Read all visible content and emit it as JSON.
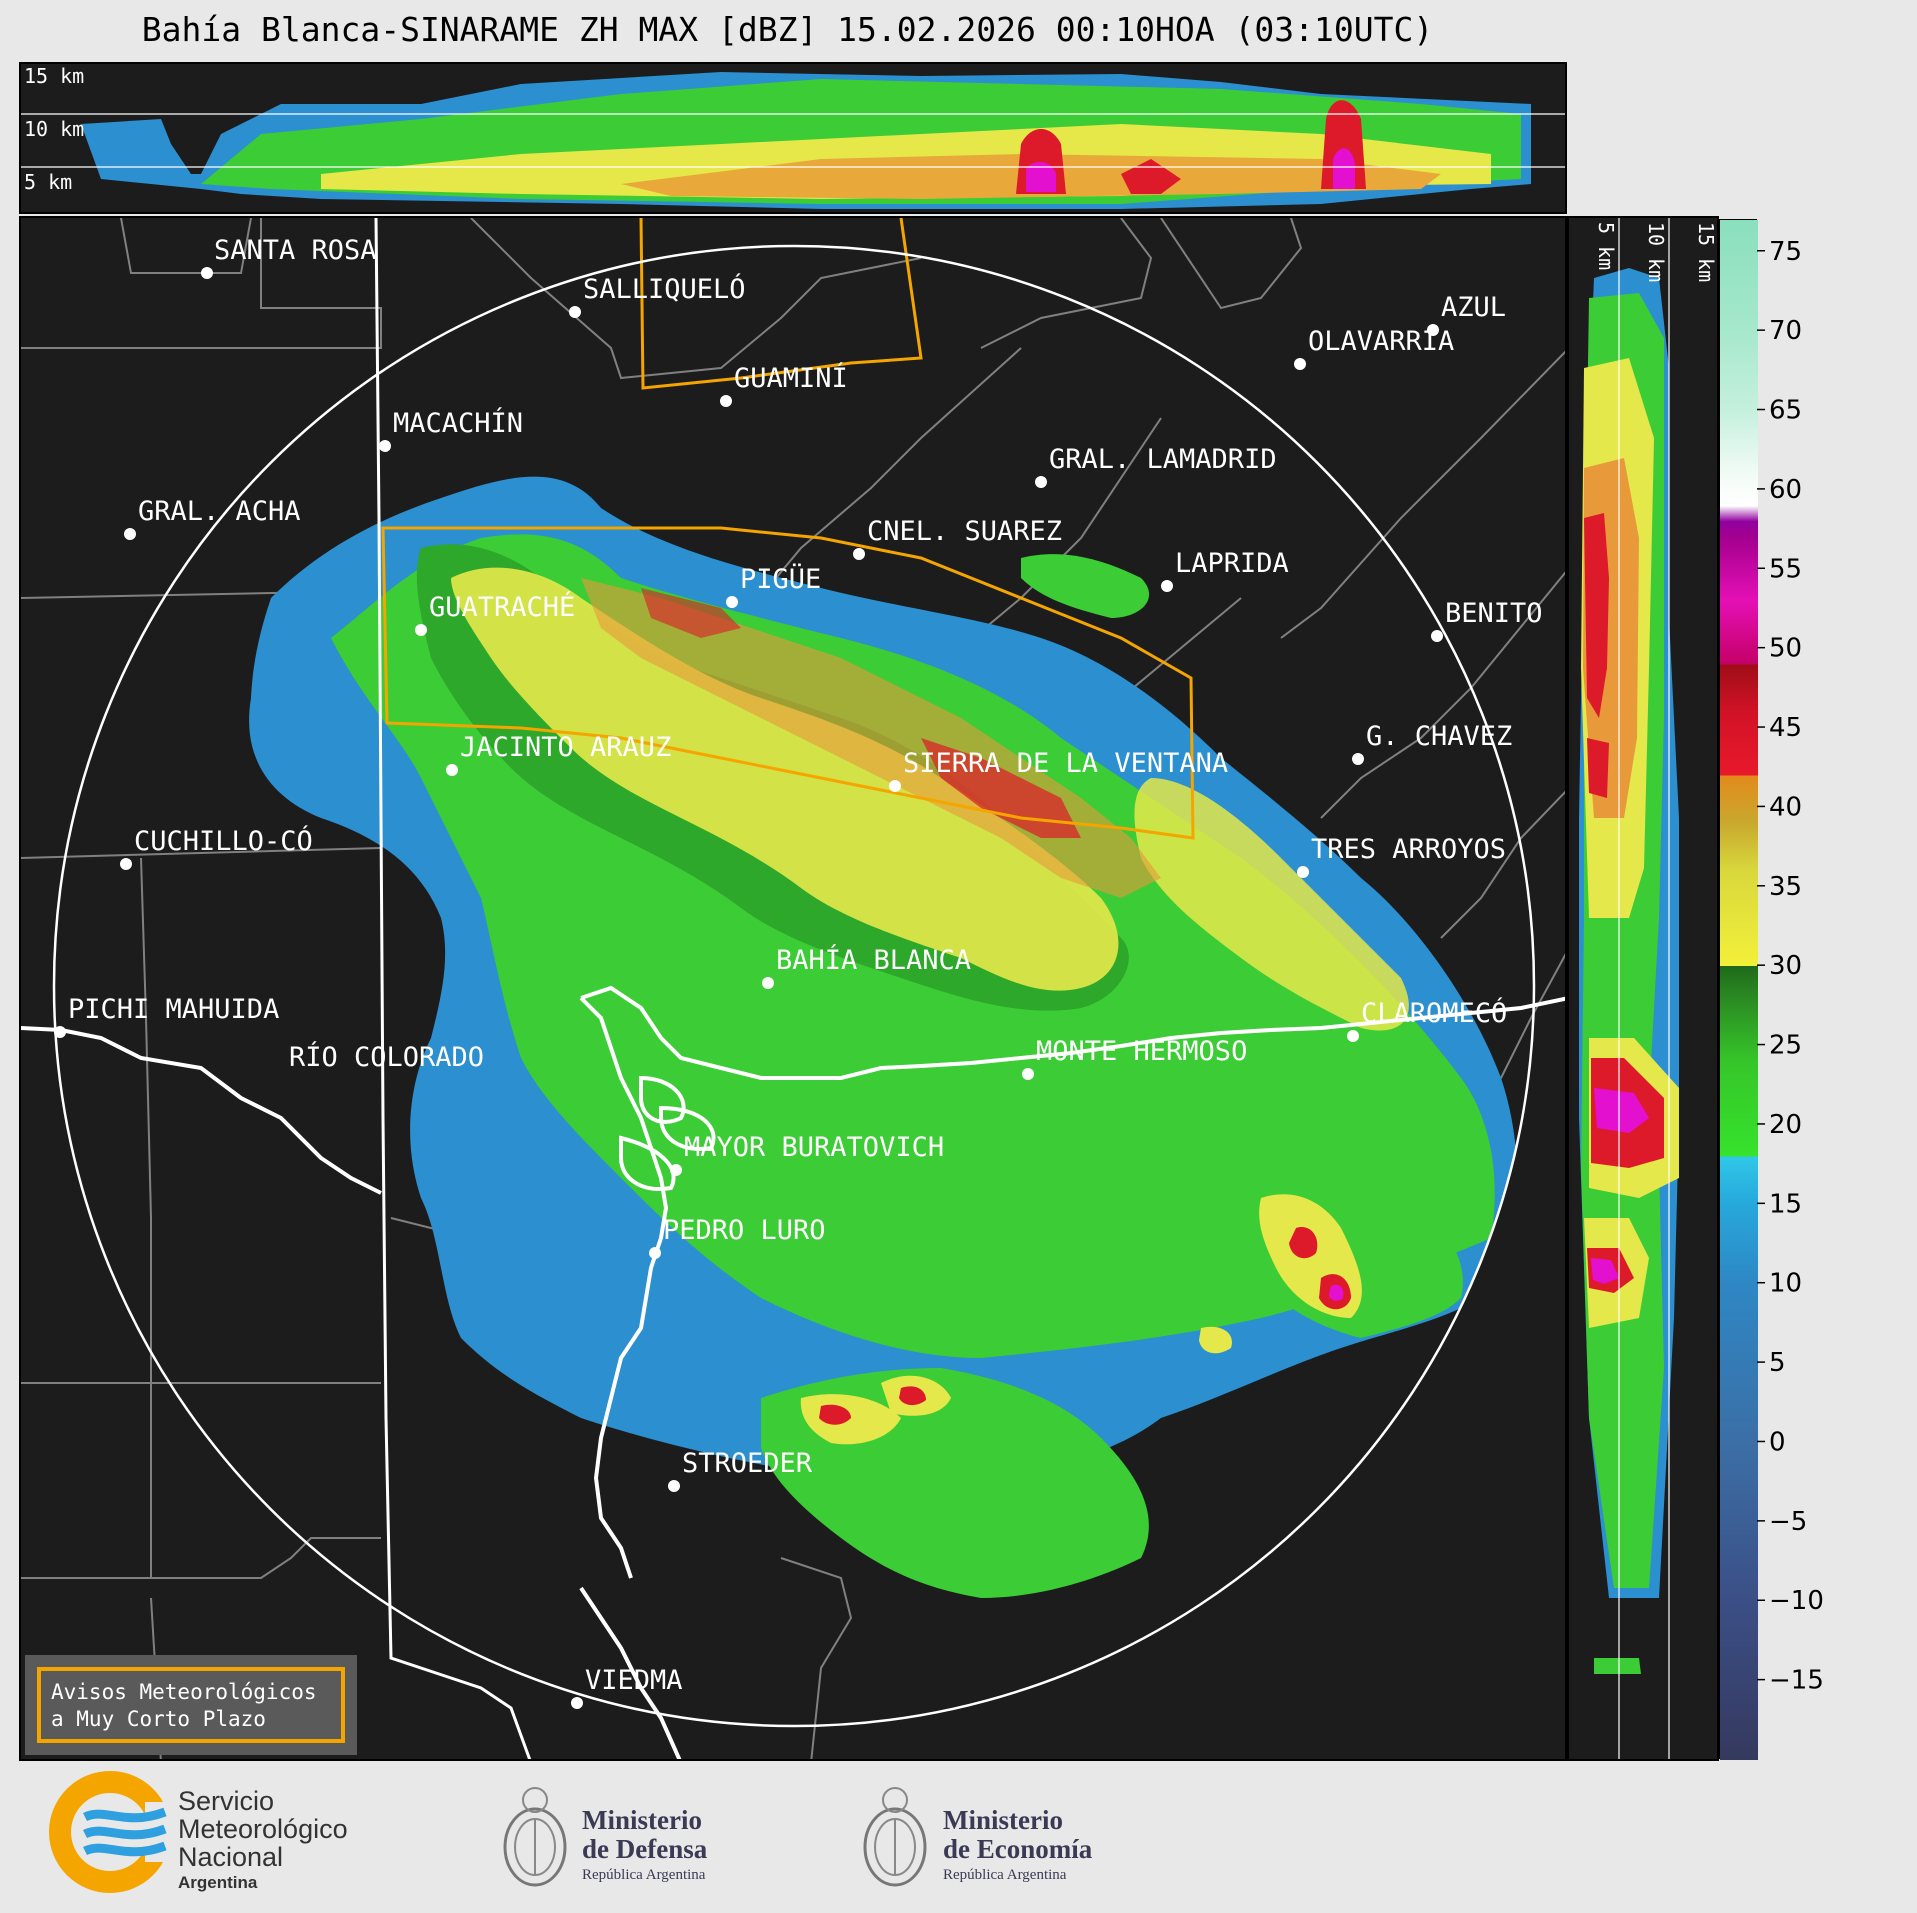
{
  "title": "Bahía Blanca-SINARAME ZH MAX [dBZ] 15.02.2026 00:10HOA (03:10UTC)",
  "top_panel": {
    "height_labels": [
      "15 km",
      "10 km",
      "5 km"
    ]
  },
  "side_panel": {
    "height_labels": [
      "5 km",
      "10 km",
      "15 km"
    ]
  },
  "colorbar": {
    "unit": "dBZ",
    "min": -20,
    "max": 77,
    "ticks": [
      75,
      70,
      65,
      60,
      55,
      50,
      45,
      40,
      35,
      30,
      25,
      20,
      15,
      10,
      5,
      0,
      -5,
      -10,
      -15
    ],
    "tick_labels": [
      "75",
      "70",
      "65",
      "60",
      "55",
      "50",
      "45",
      "40",
      "35",
      "30",
      "25",
      "20",
      "15",
      "10",
      "5",
      "0",
      "−5",
      "−10",
      "−15"
    ]
  },
  "cities": [
    {
      "name": "SANTA ROSA"
    },
    {
      "name": "SALLIQUELÓ"
    },
    {
      "name": "AZUL"
    },
    {
      "name": "OLAVARRÍA"
    },
    {
      "name": "GUAMINÍ"
    },
    {
      "name": "MACACHÍN"
    },
    {
      "name": "GRAL. LAMADRID"
    },
    {
      "name": "GRAL. ACHA"
    },
    {
      "name": "CNEL. SUAREZ"
    },
    {
      "name": "LAPRIDA"
    },
    {
      "name": "PIGÜE"
    },
    {
      "name": "GUATRACHÉ"
    },
    {
      "name": "BENITO"
    },
    {
      "name": "G. CHAVEZ"
    },
    {
      "name": "JACINTO ARAUZ"
    },
    {
      "name": "SIERRA DE LA VENTANA"
    },
    {
      "name": "CUCHILLO-CÓ"
    },
    {
      "name": "TRES ARROYOS"
    },
    {
      "name": "BAHÍA BLANCA"
    },
    {
      "name": "PICHI MAHUIDA"
    },
    {
      "name": "CLAROMECÓ"
    },
    {
      "name": "MONTE HERMOSO"
    },
    {
      "name": "RÍO COLORADO"
    },
    {
      "name": "MAYOR BURATOVICH"
    },
    {
      "name": "PEDRO LURO"
    },
    {
      "name": "STROEDER"
    },
    {
      "name": "VIEDMA"
    }
  ],
  "warning_box": {
    "line1": "Avisos Meteorológicos",
    "line2": "a Muy Corto Plazo",
    "border_color": "#f5a500"
  },
  "footer": {
    "smn": {
      "line1": "Servicio",
      "line2": "Meteorológico",
      "line3": "Nacional",
      "line4": "Argentina"
    },
    "defensa": {
      "line1": "Ministerio",
      "line2": "de Defensa",
      "line3": "República Argentina"
    },
    "economia": {
      "line1": "Ministerio",
      "line2": "de Economía",
      "line3": "República Argentina"
    }
  }
}
